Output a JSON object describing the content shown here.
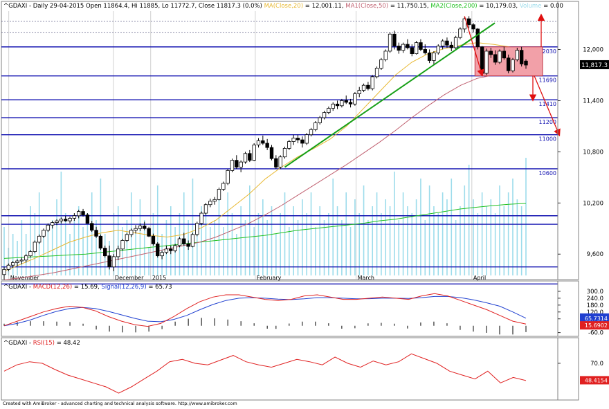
{
  "header": {
    "symbol": "^GDAXI",
    "summary": " - Daily 29-04-2015 Open 11864.4, Hi 11885, Lo 11772.7, Close 11817.3 (0.0%) ",
    "ma20_label": "MA(Close,20)",
    "ma20_value": " = 12,001.11, ",
    "ma50_label": "MA1(Close,50)",
    "ma50_value": " = 11,750.15, ",
    "ma200_label": "MA2(Close,200)",
    "ma200_value": " = 10,179.03, ",
    "volume_label": "Volume",
    "volume_value": " = 0.00"
  },
  "macd_header": {
    "symbol": "^GDAXI - ",
    "macd_label": "MACD(12,26)",
    "macd_value": " = 15.69, ",
    "signal_label": "Signal(12,26,9)",
    "signal_value": " = 65.73"
  },
  "rsi_header": {
    "symbol": "^GDAXI - ",
    "rsi_label": "RSI(15)",
    "rsi_value": " = 48.42"
  },
  "footer_credit": "Created with AmiBroker - advanced charting and technical analysis software. http://www.amibroker.com",
  "colors": {
    "ma20": "#e8b830",
    "ma50": "#c06070",
    "ma200": "#20c020",
    "volume": "#9cdceb",
    "trendline": "#18a018",
    "level_line": "#1010b0",
    "macd": "#e02020",
    "signal": "#2040d0",
    "rsi": "#e02020",
    "arrows": "#e01010",
    "box": "#f2a0a8"
  },
  "chart_data": [
    {
      "type": "candlestick",
      "panel": "price",
      "x_labels": [
        "November",
        "December",
        "2015",
        "February",
        "March",
        "April"
      ],
      "y_ticks": [
        9600,
        10200,
        10800,
        11400,
        12000
      ],
      "y_tick_labels": [
        "9,600",
        "10,200",
        "10,800",
        "11,400",
        "12,000"
      ],
      "ylim": [
        9350,
        12450
      ],
      "level_labels": [
        "12030",
        "11690",
        "11410",
        "11200",
        "11000",
        "10600"
      ],
      "levels": [
        12030,
        11690,
        11410,
        11200,
        11000,
        10600,
        10050,
        9950,
        9450,
        9250
      ],
      "dotted_levels": [
        12200,
        12330,
        11410
      ],
      "last_price_label": "11,817.3",
      "last_price": 11817.3,
      "x_range": [
        0,
        149
      ],
      "x_label_positions": [
        2,
        30,
        40,
        68,
        95,
        126
      ],
      "ohlc": [
        [
          9360,
          9450,
          9300,
          9420
        ],
        [
          9420,
          9490,
          9400,
          9470
        ],
        [
          9470,
          9520,
          9440,
          9500
        ],
        [
          9500,
          9540,
          9460,
          9520
        ],
        [
          9520,
          9560,
          9480,
          9530
        ],
        [
          9530,
          9600,
          9500,
          9580
        ],
        [
          9580,
          9650,
          9560,
          9630
        ],
        [
          9630,
          9760,
          9610,
          9740
        ],
        [
          9740,
          9830,
          9720,
          9810
        ],
        [
          9810,
          9900,
          9790,
          9880
        ],
        [
          9880,
          9960,
          9860,
          9940
        ],
        [
          9940,
          9990,
          9900,
          9970
        ],
        [
          9970,
          10010,
          9940,
          9990
        ],
        [
          9990,
          10030,
          9960,
          10010
        ],
        [
          10010,
          10050,
          9980,
          9990
        ],
        [
          9990,
          10040,
          9960,
          10020
        ],
        [
          10020,
          10080,
          9990,
          10050
        ],
        [
          10050,
          10120,
          10020,
          10100
        ],
        [
          10100,
          10130,
          10040,
          10060
        ],
        [
          10060,
          10080,
          9980,
          9960
        ],
        [
          9960,
          9990,
          9860,
          9880
        ],
        [
          9880,
          9920,
          9790,
          9810
        ],
        [
          9810,
          9830,
          9650,
          9670
        ],
        [
          9670,
          9700,
          9560,
          9580
        ],
        [
          9580,
          9700,
          9420,
          9450
        ],
        [
          9450,
          9600,
          9400,
          9570
        ],
        [
          9570,
          9700,
          9530,
          9660
        ],
        [
          9660,
          9780,
          9640,
          9760
        ],
        [
          9760,
          9850,
          9740,
          9830
        ],
        [
          9830,
          9900,
          9800,
          9880
        ],
        [
          9880,
          9940,
          9840,
          9900
        ],
        [
          9900,
          9960,
          9870,
          9930
        ],
        [
          9930,
          9980,
          9880,
          9900
        ],
        [
          9900,
          9920,
          9800,
          9810
        ],
        [
          9810,
          9840,
          9700,
          9720
        ],
        [
          9720,
          9740,
          9560,
          9580
        ],
        [
          9580,
          9640,
          9540,
          9620
        ],
        [
          9620,
          9700,
          9600,
          9660
        ],
        [
          9660,
          9700,
          9600,
          9640
        ],
        [
          9640,
          9720,
          9620,
          9700
        ],
        [
          9700,
          9800,
          9680,
          9780
        ],
        [
          9780,
          9850,
          9700,
          9720
        ],
        [
          9720,
          9760,
          9650,
          9690
        ],
        [
          9690,
          9850,
          9680,
          9830
        ],
        [
          9830,
          9980,
          9810,
          9960
        ],
        [
          9960,
          10100,
          9940,
          10080
        ],
        [
          10080,
          10200,
          10060,
          10180
        ],
        [
          10180,
          10250,
          10150,
          10220
        ],
        [
          10220,
          10270,
          10180,
          10240
        ],
        [
          10240,
          10380,
          10230,
          10360
        ],
        [
          10360,
          10450,
          10340,
          10430
        ],
        [
          10430,
          10600,
          10410,
          10580
        ],
        [
          10580,
          10720,
          10560,
          10700
        ],
        [
          10700,
          10760,
          10600,
          10620
        ],
        [
          10620,
          10700,
          10560,
          10680
        ],
        [
          10680,
          10800,
          10660,
          10780
        ],
        [
          10780,
          10820,
          10680,
          10700
        ],
        [
          10700,
          10900,
          10690,
          10880
        ],
        [
          10880,
          10960,
          10850,
          10930
        ],
        [
          10930,
          10990,
          10880,
          10900
        ],
        [
          10900,
          10950,
          10820,
          10850
        ],
        [
          10850,
          10880,
          10700,
          10720
        ],
        [
          10720,
          10760,
          10600,
          10620
        ],
        [
          10620,
          10760,
          10600,
          10740
        ],
        [
          10740,
          10860,
          10720,
          10840
        ],
        [
          10840,
          10940,
          10820,
          10920
        ],
        [
          10920,
          11000,
          10880,
          10960
        ],
        [
          10960,
          11000,
          10900,
          10940
        ],
        [
          10940,
          10980,
          10850,
          10900
        ],
        [
          10900,
          11020,
          10880,
          11000
        ],
        [
          11000,
          11080,
          10980,
          11060
        ],
        [
          11060,
          11160,
          11040,
          11140
        ],
        [
          11140,
          11220,
          11120,
          11200
        ],
        [
          11200,
          11280,
          11180,
          11260
        ],
        [
          11260,
          11330,
          11240,
          11310
        ],
        [
          11310,
          11380,
          11280,
          11360
        ],
        [
          11360,
          11400,
          11300,
          11340
        ],
        [
          11340,
          11420,
          11320,
          11400
        ],
        [
          11400,
          11460,
          11360,
          11380
        ],
        [
          11380,
          11420,
          11320,
          11360
        ],
        [
          11360,
          11500,
          11340,
          11480
        ],
        [
          11480,
          11560,
          11440,
          11520
        ],
        [
          11520,
          11600,
          11500,
          11580
        ],
        [
          11580,
          11620,
          11520,
          11540
        ],
        [
          11540,
          11700,
          11520,
          11680
        ],
        [
          11680,
          11800,
          11660,
          11780
        ],
        [
          11780,
          11900,
          11760,
          11880
        ],
        [
          11880,
          12000,
          11860,
          11980
        ],
        [
          11980,
          12200,
          11960,
          12180
        ],
        [
          12180,
          12220,
          12000,
          12040
        ],
        [
          12040,
          12080,
          11950,
          11990
        ],
        [
          11990,
          12080,
          11960,
          12060
        ],
        [
          12060,
          12120,
          12000,
          12020
        ],
        [
          12020,
          12060,
          11920,
          11950
        ],
        [
          11950,
          12100,
          11940,
          12080
        ],
        [
          12080,
          12120,
          11980,
          12000
        ],
        [
          12000,
          12060,
          11940,
          11960
        ],
        [
          11960,
          12000,
          11840,
          11870
        ],
        [
          11870,
          11980,
          11820,
          11960
        ],
        [
          11960,
          12060,
          11940,
          12040
        ],
        [
          12040,
          12120,
          12000,
          12100
        ],
        [
          12100,
          12140,
          12020,
          12050
        ],
        [
          12050,
          12090,
          11980,
          12020
        ],
        [
          12020,
          12160,
          12000,
          12140
        ],
        [
          12140,
          12260,
          12120,
          12240
        ],
        [
          12240,
          12380,
          12200,
          12360
        ],
        [
          12360,
          12390,
          12250,
          12290
        ],
        [
          12290,
          12310,
          12200,
          12240
        ],
        [
          12240,
          12250,
          12000,
          12030
        ],
        [
          12030,
          12040,
          11700,
          11720
        ],
        [
          11720,
          12010,
          11700,
          11980
        ],
        [
          11980,
          12020,
          11900,
          11940
        ],
        [
          11940,
          11990,
          11820,
          11850
        ],
        [
          11850,
          12000,
          11830,
          11980
        ],
        [
          11980,
          12030,
          11880,
          11900
        ],
        [
          11900,
          11940,
          11720,
          11750
        ],
        [
          11750,
          11900,
          11730,
          11880
        ],
        [
          11880,
          12020,
          11860,
          11990
        ],
        [
          11990,
          12030,
          11800,
          11830
        ],
        [
          11864,
          11885,
          11773,
          11817
        ]
      ],
      "ma20": [
        9400,
        9480,
        9560,
        9650,
        9740,
        9800,
        9850,
        9880,
        9850,
        9820,
        9800,
        9830,
        9900,
        10000,
        10150,
        10300,
        10480,
        10620,
        10740,
        10840,
        10950,
        11100,
        11300,
        11500,
        11700,
        11850,
        11950,
        12010,
        12050,
        12080,
        12060,
        12030,
        12000
      ],
      "ma50": [
        9300,
        9320,
        9350,
        9380,
        9420,
        9460,
        9500,
        9540,
        9580,
        9620,
        9660,
        9700,
        9740,
        9800,
        9880,
        9960,
        10060,
        10170,
        10290,
        10410,
        10530,
        10650,
        10780,
        10910,
        11050,
        11200,
        11340,
        11470,
        11580,
        11660,
        11700,
        11730,
        11750
      ],
      "ma200": [
        9550,
        9560,
        9570,
        9580,
        9590,
        9600,
        9620,
        9640,
        9660,
        9680,
        9700,
        9720,
        9740,
        9760,
        9780,
        9800,
        9820,
        9850,
        9880,
        9900,
        9920,
        9940,
        9960,
        9990,
        10010,
        10040,
        10070,
        10100,
        10130,
        10150,
        10170,
        10185,
        10195
      ],
      "volume_relative": [
        0.35,
        0.2,
        0.3,
        0.25,
        0.4,
        0.3,
        0.5,
        0.45,
        0.6,
        0.3,
        0.35,
        0.4,
        0.55,
        0.75,
        0.45,
        0.3,
        0.4,
        0.5,
        0.35,
        0.45,
        0.6,
        0.4,
        0.7,
        0.3,
        0.25,
        0.45,
        0.5,
        0.35,
        0.4,
        0.6,
        0.3,
        0.55,
        0.4,
        0.2,
        0.45,
        0.65,
        0.3,
        0.4,
        0.5,
        0.35,
        0.45,
        0.6,
        0.4,
        0.7,
        0.3,
        0.5,
        0.45,
        0.35,
        0.4,
        0.55,
        0.35,
        0.6,
        0.45,
        0.3,
        0.5,
        0.4,
        0.65,
        0.35,
        0.45,
        0.55,
        0.4,
        0.5,
        0.3,
        0.45,
        0.6,
        0.35,
        0.5,
        0.4,
        0.55,
        0.45,
        0.6,
        0.35,
        0.5,
        0.4,
        0.45,
        0.7,
        0.5,
        0.4,
        0.6,
        0.35,
        0.55,
        0.45,
        0.65,
        0.4,
        0.5,
        0.6,
        0.45,
        0.55,
        0.5,
        0.75,
        0.4,
        0.6,
        0.5,
        0.45,
        0.55,
        0.7,
        0.4,
        0.65,
        0.5,
        0.45,
        0.6,
        0.55,
        0.7,
        0.4,
        0.5,
        0.65,
        0.8,
        0.55,
        0.45,
        0.6,
        0.5,
        0.55,
        0.45,
        0.65,
        0.5,
        0.6,
        0.7,
        0.55,
        0.5,
        0.85
      ]
    },
    {
      "type": "line",
      "panel": "macd",
      "y_tick_labels": [
        "300.0",
        "240.0",
        "180.0",
        "120.0",
        "60.0",
        "-60.0"
      ],
      "y_ticks": [
        300,
        240,
        180,
        120,
        60,
        -60
      ],
      "ylim": [
        -80,
        330
      ],
      "macd_label": "15.6902",
      "signal_label": "65.7314",
      "macd": [
        0,
        40,
        80,
        120,
        150,
        170,
        160,
        130,
        80,
        40,
        10,
        -5,
        20,
        80,
        150,
        210,
        250,
        270,
        270,
        250,
        230,
        220,
        230,
        260,
        270,
        250,
        230,
        230,
        240,
        250,
        240,
        230,
        260,
        280,
        260,
        220,
        180,
        140,
        90,
        40,
        15
      ],
      "signal": [
        0,
        20,
        50,
        90,
        125,
        150,
        160,
        150,
        125,
        95,
        65,
        40,
        35,
        55,
        90,
        140,
        185,
        220,
        240,
        245,
        240,
        232,
        228,
        235,
        245,
        245,
        240,
        235,
        236,
        240,
        240,
        238,
        245,
        255,
        255,
        245,
        225,
        200,
        170,
        120,
        66
      ],
      "histogram_span": [
        0,
        41
      ]
    },
    {
      "type": "line",
      "panel": "rsi",
      "y_tick_labels": [
        "70.0"
      ],
      "y_ticks": [
        70
      ],
      "ylim": [
        25,
        92
      ],
      "rsi_label": "48.4154",
      "rsi": [
        60,
        68,
        72,
        70,
        62,
        55,
        50,
        45,
        40,
        32,
        40,
        50,
        60,
        72,
        75,
        70,
        68,
        74,
        80,
        72,
        68,
        65,
        70,
        75,
        72,
        68,
        78,
        70,
        65,
        73,
        68,
        72,
        82,
        76,
        70,
        60,
        55,
        50,
        60,
        45,
        52,
        48
      ]
    }
  ]
}
